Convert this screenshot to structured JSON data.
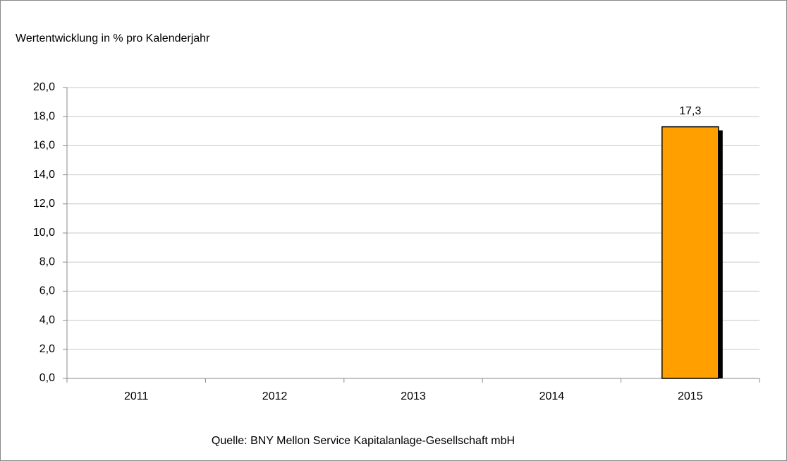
{
  "chart_data": {
    "type": "bar",
    "title": "Wertentwicklung in % pro Kalenderjahr",
    "categories": [
      "2011",
      "2012",
      "2013",
      "2014",
      "2015"
    ],
    "values": [
      null,
      null,
      null,
      null,
      17.3
    ],
    "value_labels": [
      null,
      null,
      null,
      null,
      "17,3"
    ],
    "color": "#ffa000",
    "ylim": [
      0,
      20
    ],
    "yticks": [
      {
        "value": 0,
        "label": "0,0"
      },
      {
        "value": 2,
        "label": "2,0"
      },
      {
        "value": 4,
        "label": "4,0"
      },
      {
        "value": 6,
        "label": "6,0"
      },
      {
        "value": 8,
        "label": "8,0"
      },
      {
        "value": 10,
        "label": "10,0"
      },
      {
        "value": 12,
        "label": "12,0"
      },
      {
        "value": 14,
        "label": "14,0"
      },
      {
        "value": 16,
        "label": "16,0"
      },
      {
        "value": 18,
        "label": "18,0"
      },
      {
        "value": 20,
        "label": "20,0"
      }
    ],
    "grid": true,
    "source": "Quelle: BNY Mellon Service Kapitalanlage-Gesellschaft mbH"
  }
}
